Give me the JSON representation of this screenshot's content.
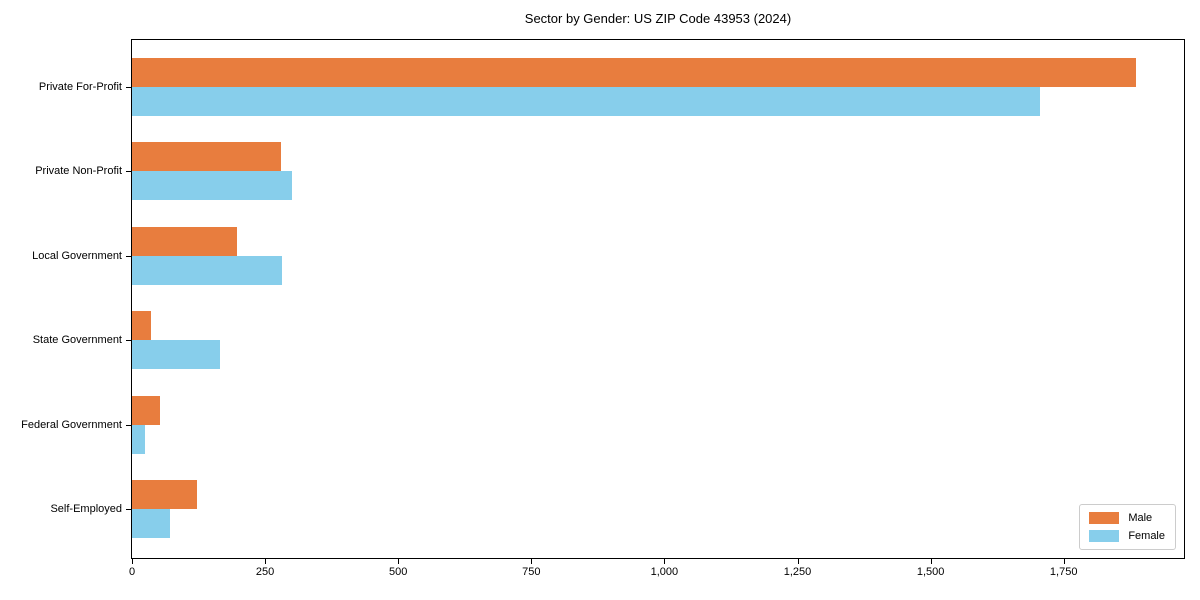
{
  "chart_data": {
    "type": "bar",
    "orientation": "horizontal",
    "title": "Sector by Gender: US ZIP Code 43953 (2024)",
    "xlabel": "",
    "ylabel": "",
    "categories": [
      "Private For-Profit",
      "Private Non-Profit",
      "Local Government",
      "State Government",
      "Federal Government",
      "Self-Employed"
    ],
    "series": [
      {
        "name": "Male",
        "color": "#E87D3E",
        "values": [
          1885,
          280,
          198,
          36,
          53,
          122
        ]
      },
      {
        "name": "Female",
        "color": "#87CEEB",
        "values": [
          1705,
          300,
          281,
          165,
          25,
          72
        ]
      }
    ],
    "xlim": [
      0,
      1976
    ],
    "xticks": [
      0,
      250,
      500,
      750,
      1000,
      1250,
      1500,
      1750
    ],
    "xtick_labels": [
      "0",
      "250",
      "500",
      "750",
      "1,000",
      "1,250",
      "1,500",
      "1,750"
    ],
    "legend_position": "lower right",
    "grid": false,
    "background_color": "#ffffff",
    "spine_color": "#000000"
  }
}
